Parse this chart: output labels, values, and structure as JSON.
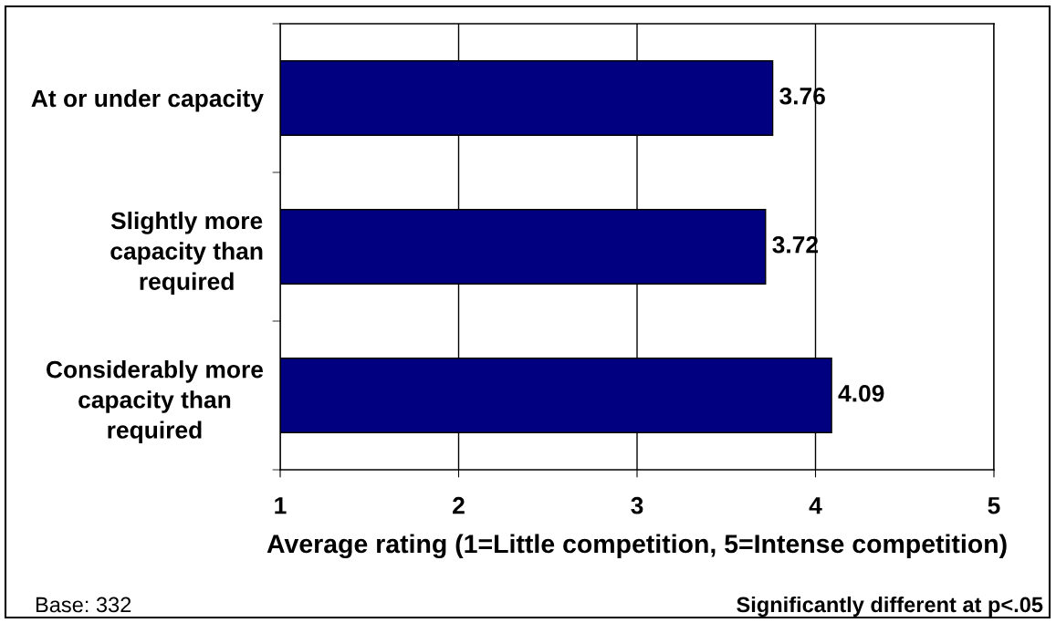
{
  "chart_data": {
    "type": "bar",
    "orientation": "horizontal",
    "categories": [
      "At or under capacity",
      "Slightly more\ncapacity than\nrequired",
      "Considerably more\ncapacity than\nrequired"
    ],
    "values": [
      3.76,
      3.72,
      4.09
    ],
    "color": "#000080",
    "xlabel": "Average rating (1=Little competition, 5=Intense competition)",
    "xlim": [
      1,
      5
    ],
    "xticks": [
      1,
      2,
      3,
      4,
      5
    ],
    "grid": "x",
    "data_labels": true,
    "annotations": [
      "Base: 332",
      "Significantly different at p<.05"
    ]
  }
}
